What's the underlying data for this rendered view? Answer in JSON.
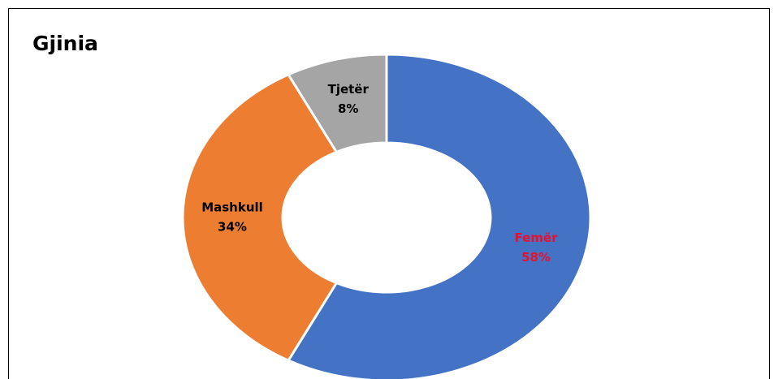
{
  "chart_data": {
    "type": "donut",
    "title": "Gjinia",
    "categories": [
      "Femër",
      "Mashkull",
      "Tjetër"
    ],
    "values": [
      58,
      34,
      8
    ],
    "value_labels": [
      "58%",
      "34%",
      "8%"
    ],
    "colors": [
      "#4472c4",
      "#ed7d31",
      "#a5a5a5"
    ],
    "label_colors": [
      "#e8112d",
      "#000000",
      "#000000"
    ]
  }
}
